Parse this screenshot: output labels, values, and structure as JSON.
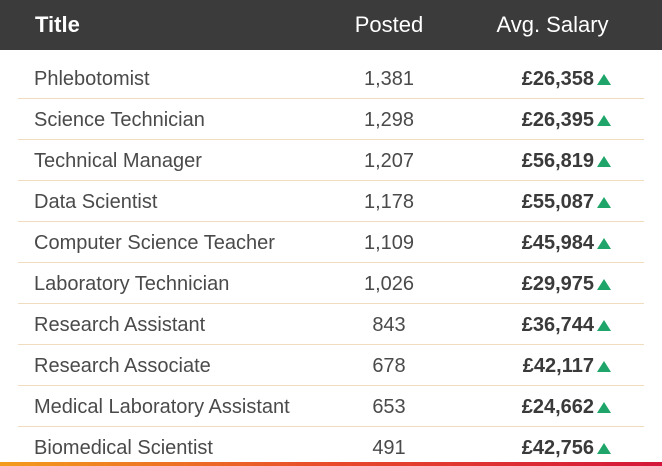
{
  "header": {
    "title": "Title",
    "posted": "Posted",
    "salary": "Avg. Salary"
  },
  "trend_color": "#1fa56a",
  "rows": [
    {
      "title": "Phlebotomist",
      "posted": "1,381",
      "salary": "£26,358",
      "trend": "up-arrow-icon"
    },
    {
      "title": "Science Technician",
      "posted": "1,298",
      "salary": "£26,395",
      "trend": "up-arrow-icon"
    },
    {
      "title": "Technical Manager",
      "posted": "1,207",
      "salary": "£56,819",
      "trend": "up-arrow-icon"
    },
    {
      "title": "Data Scientist",
      "posted": "1,178",
      "salary": "£55,087",
      "trend": "up-arrow-icon"
    },
    {
      "title": "Computer Science Teacher",
      "posted": "1,109",
      "salary": "£45,984",
      "trend": "up-arrow-icon"
    },
    {
      "title": "Laboratory Technician",
      "posted": "1,026",
      "salary": "£29,975",
      "trend": "up-arrow-icon"
    },
    {
      "title": "Research Assistant",
      "posted": "843",
      "salary": "£36,744",
      "trend": "up-arrow-icon"
    },
    {
      "title": "Research Associate",
      "posted": "678",
      "salary": "£42,117",
      "trend": "up-arrow-icon"
    },
    {
      "title": "Medical Laboratory Assistant",
      "posted": "653",
      "salary": "£24,662",
      "trend": "up-arrow-icon"
    },
    {
      "title": "Biomedical Scientist",
      "posted": "491",
      "salary": "£42,756",
      "trend": "up-arrow-icon"
    }
  ]
}
